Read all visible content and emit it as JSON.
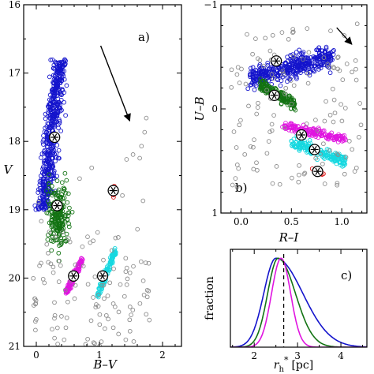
{
  "chart_data": [
    {
      "panel": "a)",
      "type": "scatter",
      "xlabel": "B–V",
      "ylabel": "V",
      "xlim": [
        -0.2,
        2.3
      ],
      "ylim": [
        21,
        16
      ],
      "y_inverted": true,
      "xticks": [
        "0",
        "1",
        "2"
      ],
      "yticks": [
        "16",
        "17",
        "18",
        "19",
        "20",
        "21"
      ],
      "grid": false,
      "arrow": {
        "from": [
          1.02,
          16.6
        ],
        "to": [
          1.48,
          17.7
        ]
      },
      "series": [
        {
          "color": "#1414cc",
          "region": {
            "x": [
              0.05,
              0.62
            ],
            "y": [
              16.8,
              19.0
            ]
          }
        },
        {
          "color": "#137313",
          "region": {
            "x": [
              0.12,
              0.58
            ],
            "y": [
              18.45,
              19.7
            ]
          }
        },
        {
          "color": "#e015e0",
          "region": {
            "x": [
              0.45,
              0.75
            ],
            "y": [
              19.7,
              20.25
            ]
          }
        },
        {
          "color": "#16d8e0",
          "region": {
            "x": [
              0.95,
              1.28
            ],
            "y": [
              19.55,
              20.3
            ]
          }
        },
        {
          "color": "#e01414",
          "region": {
            "x": [
              1.18,
              1.26
            ],
            "y": [
              18.6,
              18.85
            ]
          }
        },
        {
          "color": "#8c8c8c",
          "region": {
            "x": [
              -0.05,
              1.8
            ],
            "y": [
              17.3,
              21.0
            ]
          }
        }
      ],
      "markers": [
        {
          "x": 0.29,
          "y": 17.94
        },
        {
          "x": 0.33,
          "y": 18.94
        },
        {
          "x": 0.59,
          "y": 19.97
        },
        {
          "x": 1.05,
          "y": 19.97
        },
        {
          "x": 1.22,
          "y": 18.72
        }
      ]
    },
    {
      "panel": "b)",
      "type": "scatter",
      "xlabel": "R–I",
      "ylabel": "U–B",
      "xlim": [
        -0.2,
        1.25
      ],
      "ylim": [
        1,
        -1
      ],
      "y_inverted": true,
      "xticks": [
        "0.0",
        "0.5",
        "1.0"
      ],
      "yticks": [
        "−1",
        "0",
        "1"
      ],
      "grid": false,
      "arrow": {
        "from": [
          0.95,
          -0.78
        ],
        "to": [
          1.1,
          -0.62
        ]
      },
      "series": [
        {
          "color": "#1414cc",
          "region": {
            "x": [
              0.05,
              0.95
            ],
            "y": [
              -0.68,
              -0.12
            ]
          }
        },
        {
          "color": "#137313",
          "region": {
            "x": [
              0.18,
              0.55
            ],
            "y": [
              -0.32,
              0.05
            ]
          }
        },
        {
          "color": "#e015e0",
          "region": {
            "x": [
              0.4,
              1.05
            ],
            "y": [
              0.1,
              0.35
            ]
          }
        },
        {
          "color": "#16d8e0",
          "region": {
            "x": [
              0.5,
              1.05
            ],
            "y": [
              0.25,
              0.58
            ]
          }
        },
        {
          "color": "#e01414",
          "region": {
            "x": [
              0.7,
              0.82
            ],
            "y": [
              0.55,
              0.65
            ]
          }
        },
        {
          "color": "#8c8c8c",
          "region": {
            "x": [
              -0.1,
              1.2
            ],
            "y": [
              -0.82,
              0.75
            ]
          }
        }
      ],
      "markers": [
        {
          "x": 0.35,
          "y": -0.46
        },
        {
          "x": 0.33,
          "y": -0.13
        },
        {
          "x": 0.6,
          "y": 0.25
        },
        {
          "x": 0.73,
          "y": 0.39
        },
        {
          "x": 0.76,
          "y": 0.6
        }
      ]
    },
    {
      "panel": "c)",
      "type": "line",
      "xlabel": "r",
      "xlabel_sub": "h",
      "xlabel_sup": "*",
      "xlabel_unit": "[pc]",
      "ylabel": "fraction",
      "xlim": [
        1.45,
        4.6
      ],
      "ylim": [
        0,
        1.1
      ],
      "xticks": [
        "2",
        "3",
        "4"
      ],
      "grid": false,
      "vline": 2.68,
      "series": [
        {
          "color": "#1414cc",
          "peak": 2.5,
          "sigma_left": 0.28,
          "sigma_right": 0.62
        },
        {
          "color": "#137313",
          "peak": 2.55,
          "sigma_left": 0.24,
          "sigma_right": 0.4
        },
        {
          "color": "#e015e0",
          "peak": 2.62,
          "sigma_left": 0.22,
          "sigma_right": 0.22
        }
      ]
    }
  ]
}
